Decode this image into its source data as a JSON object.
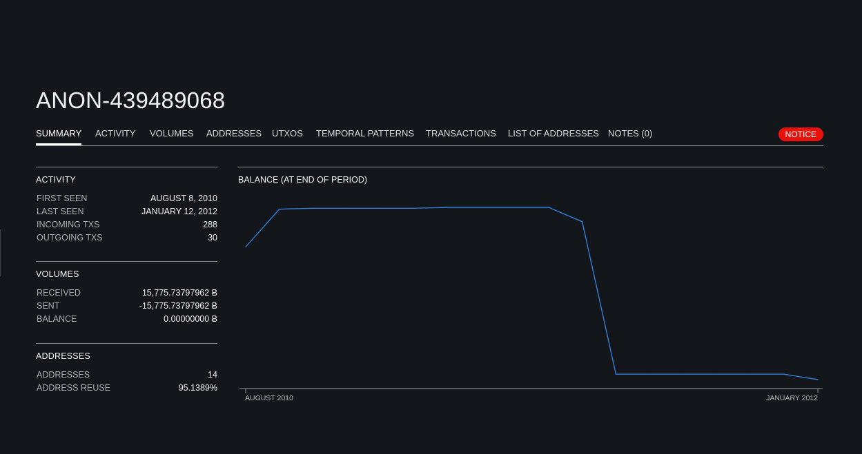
{
  "entity": {
    "title": "ANON-439489068"
  },
  "tabs": [
    {
      "label": "SUMMARY",
      "active": true
    },
    {
      "label": "ACTIVITY"
    },
    {
      "label": "VOLUMES"
    },
    {
      "label": "ADDRESSES"
    },
    {
      "label": "UTXOS"
    },
    {
      "label": "TEMPORAL PATTERNS"
    },
    {
      "label": "TRANSACTIONS"
    },
    {
      "label": "LIST OF ADDRESSES"
    },
    {
      "label": "NOTES (0)"
    }
  ],
  "notice": {
    "label": "NOTICE",
    "color": "#e8120c"
  },
  "summary": {
    "activity": {
      "title": "ACTIVITY",
      "rows": [
        {
          "key": "FIRST SEEN",
          "value": "AUGUST 8, 2010"
        },
        {
          "key": "LAST SEEN",
          "value": "JANUARY 12, 2012"
        },
        {
          "key": "INCOMING TXS",
          "value": "288"
        },
        {
          "key": "OUTGOING TXS",
          "value": "30"
        }
      ]
    },
    "volumes": {
      "title": "VOLUMES",
      "rows": [
        {
          "key": "RECEIVED",
          "value": "15,775.73797962 Ƀ"
        },
        {
          "key": "SENT",
          "value": "-15,775.73797962 Ƀ"
        },
        {
          "key": "BALANCE",
          "value": "0.00000000 Ƀ"
        }
      ]
    },
    "addresses": {
      "title": "ADDRESSES",
      "rows": [
        {
          "key": "ADDRESSES",
          "value": "14"
        },
        {
          "key": "ADDRESS REUSE",
          "value": "95.1389%"
        }
      ]
    }
  },
  "chart_data": {
    "type": "line",
    "title": "BALANCE (AT END OF PERIOD)",
    "x_tick_labels": [
      "AUGUST 2010",
      "JANUARY 2012"
    ],
    "x": [
      0,
      1,
      2,
      3,
      4,
      5,
      6,
      7,
      8,
      9,
      10,
      11,
      12,
      13,
      14,
      15,
      16,
      17
    ],
    "values": [
      0.79,
      1.0,
      1.005,
      1.005,
      1.005,
      1.005,
      1.01,
      1.01,
      1.01,
      1.01,
      0.93,
      0.08,
      0.08,
      0.08,
      0.08,
      0.08,
      0.08,
      0.05
    ],
    "value_note": "y axis unlabeled; values relative to the plateau",
    "line_color": "#2f7ed8",
    "grid": false
  }
}
